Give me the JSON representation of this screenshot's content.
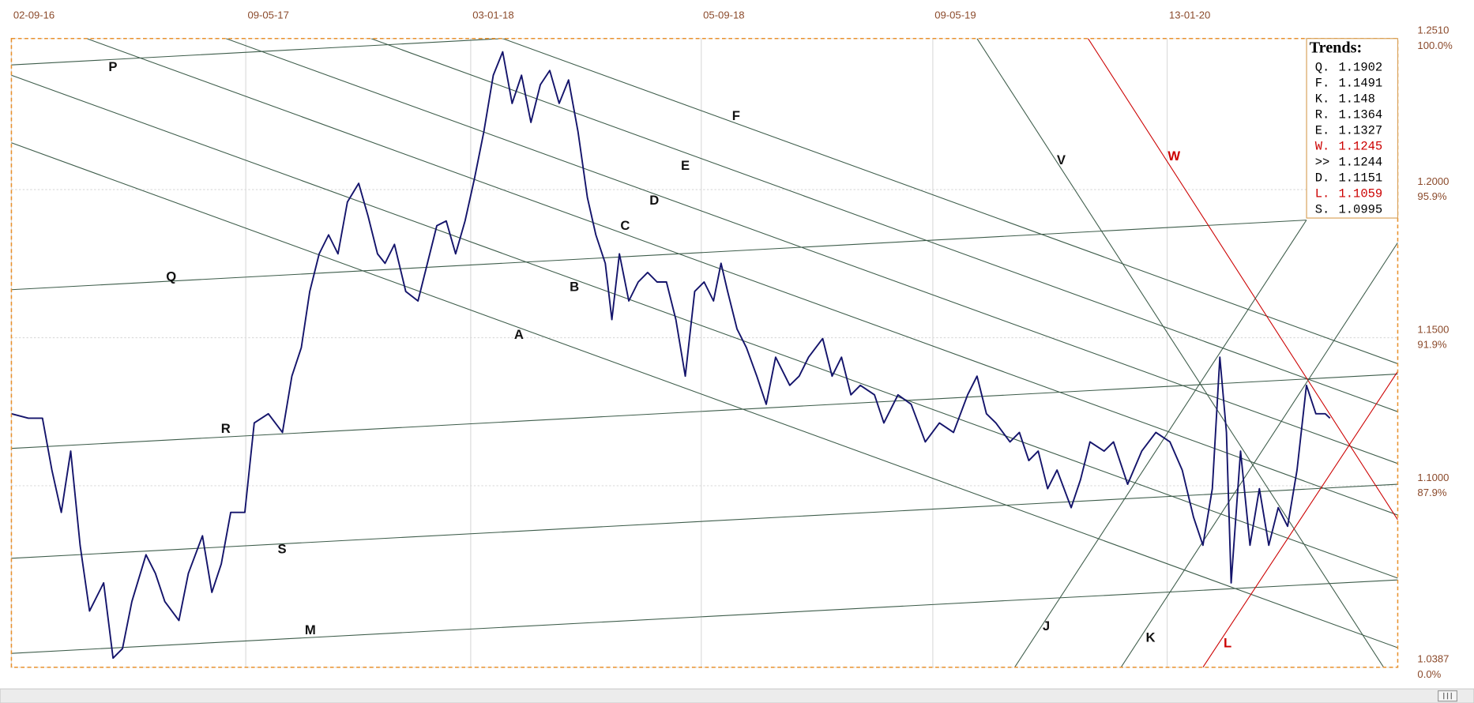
{
  "chart_data": {
    "type": "line",
    "xlim": [
      0,
      1473
    ],
    "xticks": [
      {
        "value": 0,
        "label": "02-09-16"
      },
      {
        "value": 249,
        "label": "09-05-17"
      },
      {
        "value": 488,
        "label": "03-01-18"
      },
      {
        "value": 733,
        "label": "05-09-18"
      },
      {
        "value": 979,
        "label": "09-05-19"
      },
      {
        "value": 1228,
        "label": "13-01-20"
      }
    ],
    "ylim": [
      1.0387,
      1.251
    ],
    "yticks": [
      {
        "value": 1.251,
        "label": "1.2510"
      },
      {
        "value": 1.2,
        "label": "1.2000"
      },
      {
        "value": 1.15,
        "label": "1.1500"
      },
      {
        "value": 1.1,
        "label": "1.1000"
      },
      1.0387
    ],
    "y_percent_labels": [
      "100.0%",
      "95.9%",
      "91.9%",
      "87.9%",
      "0.0%"
    ],
    "grid": true,
    "series": [
      {
        "color": "#14146b",
        "x": [
          0,
          18,
          33,
          43,
          53,
          63,
          73,
          83,
          98,
          108,
          118,
          128,
          143,
          153,
          163,
          178,
          188,
          203,
          213,
          223,
          233,
          248,
          258,
          273,
          288,
          298,
          308,
          317,
          327,
          337,
          347,
          357,
          369,
          379,
          389,
          397,
          407,
          419,
          432,
          442,
          452,
          462,
          472,
          482,
          492,
          502,
          512,
          522,
          532,
          542,
          552,
          562,
          572,
          582,
          592,
          602,
          612,
          621,
          631,
          638,
          646,
          656,
          666,
          676,
          686,
          696,
          706,
          716,
          726,
          736,
          746,
          754,
          761,
          771,
          781,
          792,
          802,
          812,
          827,
          837,
          847,
          862,
          872,
          882,
          892,
          902,
          917,
          927,
          942,
          956,
          971,
          986,
          1001,
          1016,
          1026,
          1036,
          1046,
          1061,
          1071,
          1081,
          1091,
          1101,
          1111,
          1126,
          1136,
          1146,
          1161,
          1171,
          1186,
          1201,
          1216,
          1231,
          1244,
          1256,
          1266,
          1276,
          1284,
          1291,
          1296,
          1306,
          1316,
          1326,
          1336,
          1346,
          1356,
          1366,
          1376,
          1386,
          1396,
          1401
        ],
        "values": [
          1.1243,
          1.1228,
          1.1228,
          1.1053,
          1.091,
          1.1117,
          1.0799,
          1.0577,
          1.0672,
          1.0418,
          1.045,
          1.0609,
          1.0767,
          1.0704,
          1.0609,
          1.0545,
          1.0704,
          1.0831,
          1.064,
          1.0736,
          1.091,
          1.091,
          1.1212,
          1.1243,
          1.118,
          1.137,
          1.1466,
          1.1656,
          1.1783,
          1.1847,
          1.1783,
          1.1958,
          1.2021,
          1.191,
          1.1783,
          1.1751,
          1.1815,
          1.1656,
          1.1624,
          1.1751,
          1.1878,
          1.1894,
          1.1783,
          1.1894,
          1.2037,
          1.2196,
          1.2386,
          1.2465,
          1.2291,
          1.2386,
          1.2227,
          1.2354,
          1.2402,
          1.2291,
          1.237,
          1.2196,
          1.1973,
          1.1847,
          1.1751,
          1.1561,
          1.1783,
          1.1624,
          1.1688,
          1.172,
          1.1688,
          1.1688,
          1.1561,
          1.137,
          1.1656,
          1.1688,
          1.1624,
          1.1751,
          1.1656,
          1.1529,
          1.1466,
          1.137,
          1.1275,
          1.1434,
          1.1339,
          1.137,
          1.1434,
          1.1497,
          1.137,
          1.1434,
          1.1307,
          1.1339,
          1.1307,
          1.1212,
          1.1307,
          1.1275,
          1.1148,
          1.1212,
          1.118,
          1.1307,
          1.137,
          1.1243,
          1.1212,
          1.1148,
          1.118,
          1.1085,
          1.1117,
          1.099,
          1.1053,
          1.0926,
          1.1021,
          1.1148,
          1.1117,
          1.1148,
          1.1005,
          1.1117,
          1.118,
          1.1148,
          1.1053,
          1.0894,
          1.0799,
          1.099,
          1.1434,
          1.118,
          1.0672,
          1.1117,
          1.0799,
          1.099,
          1.0799,
          1.0926,
          1.0863,
          1.1053,
          1.1339,
          1.1243,
          1.1243,
          1.1228
        ]
      }
    ],
    "trendlines": [
      {
        "label": "P",
        "color": "#3d5c4a",
        "x": [
          0,
          522
        ],
        "y": [
          1.2421,
          1.251
        ]
      },
      {
        "label": "Q",
        "color": "#3d5c4a",
        "x": [
          0,
          1376
        ],
        "y": [
          1.1662,
          1.1897
        ]
      },
      {
        "label": "R",
        "color": "#3d5c4a",
        "x": [
          0,
          1473
        ],
        "y": [
          1.1126,
          1.1377
        ]
      },
      {
        "label": "S",
        "color": "#3d5c4a",
        "x": [
          0,
          1473
        ],
        "y": [
          1.0755,
          1.1005
        ]
      },
      {
        "label": "M",
        "color": "#3d5c4a",
        "x": [
          0,
          1473
        ],
        "y": [
          1.0434,
          1.0682
        ]
      },
      {
        "label": "A",
        "color": "#3d5c4a",
        "x": [
          0,
          1473
        ],
        "y": [
          1.2158,
          1.0453
        ]
      },
      {
        "label": "B",
        "color": "#3d5c4a",
        "x": [
          0,
          1473
        ],
        "y": [
          1.2386,
          1.0688
        ]
      },
      {
        "label": "C",
        "color": "#3d5c4a",
        "x": [
          80,
          1473
        ],
        "y": [
          1.251,
          1.0901
        ]
      },
      {
        "label": "D",
        "color": "#3d5c4a",
        "x": [
          228,
          1473
        ],
        "y": [
          1.251,
          1.1075
        ]
      },
      {
        "label": "E",
        "color": "#3d5c4a",
        "x": [
          382,
          1473
        ],
        "y": [
          1.251,
          1.125
        ]
      },
      {
        "label": "F",
        "color": "#3d5c4a",
        "x": [
          522,
          1473
        ],
        "y": [
          1.251,
          1.1412
        ]
      },
      {
        "label": "V",
        "color": "#3d5c4a",
        "x": [
          1026,
          1458
        ],
        "y": [
          1.251,
          1.0387
        ]
      },
      {
        "label": "W",
        "color": "#cc0000",
        "x": [
          1144,
          1473
        ],
        "y": [
          1.251,
          1.0885
        ]
      },
      {
        "label": "L",
        "color": "#cc0000",
        "x": [
          1266,
          1473
        ],
        "y": [
          1.0387,
          1.1386
        ]
      },
      {
        "label": "J",
        "color": "#3d5c4a",
        "x": [
          1066,
          1376
        ],
        "y": [
          1.0387,
          1.1897
        ]
      },
      {
        "label": "K",
        "color": "#3d5c4a",
        "x": [
          1179,
          1473
        ],
        "y": [
          1.0387,
          1.1821
        ]
      }
    ],
    "trends_panel": {
      "title": "Trends:",
      "rows": [
        {
          "label": "Q.",
          "value": 1.1902,
          "color": "#000000"
        },
        {
          "label": "F.",
          "value": 1.1491,
          "color": "#000000"
        },
        {
          "label": "K.",
          "value": 1.148,
          "color": "#000000"
        },
        {
          "label": "R.",
          "value": 1.1364,
          "color": "#000000"
        },
        {
          "label": "E.",
          "value": 1.1327,
          "color": "#000000"
        },
        {
          "label": "W.",
          "value": 1.1245,
          "color": "#cc0000"
        },
        {
          "label": ">>",
          "value": 1.1244,
          "color": "#000000"
        },
        {
          "label": "D.",
          "value": 1.1151,
          "color": "#000000"
        },
        {
          "label": "L.",
          "value": 1.1059,
          "color": "#cc0000"
        },
        {
          "label": "S.",
          "value": 1.0995,
          "color": "#000000"
        }
      ]
    }
  }
}
